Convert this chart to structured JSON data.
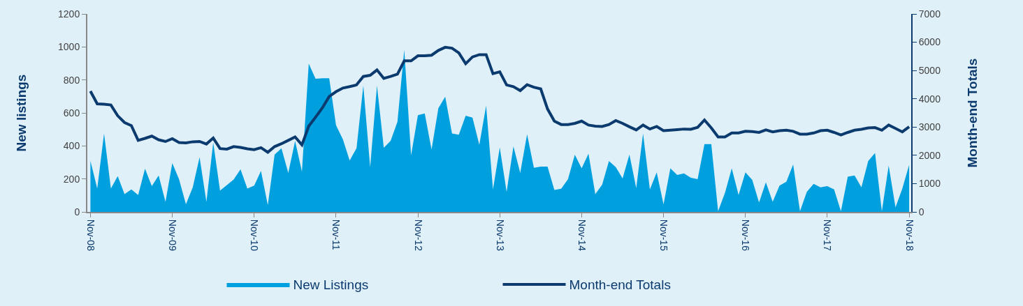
{
  "chart_data": {
    "type": "area",
    "ylabel": "New listings",
    "y2label": "Month-end Totals",
    "categories": [
      "Nov-08",
      null,
      null,
      null,
      null,
      null,
      null,
      null,
      null,
      null,
      null,
      null,
      "Nov-09",
      null,
      null,
      null,
      null,
      null,
      null,
      null,
      null,
      null,
      null,
      null,
      "Nov-10",
      null,
      null,
      null,
      null,
      null,
      null,
      null,
      null,
      null,
      null,
      null,
      "Nov-11",
      null,
      null,
      null,
      null,
      null,
      null,
      null,
      null,
      null,
      null,
      null,
      "Nov-12",
      null,
      null,
      null,
      null,
      null,
      null,
      null,
      null,
      null,
      null,
      null,
      "Nov-13",
      null,
      null,
      null,
      null,
      null,
      null,
      null,
      null,
      null,
      null,
      null,
      "Nov-14",
      null,
      null,
      null,
      null,
      null,
      null,
      null,
      null,
      null,
      null,
      null,
      "Nov-15",
      null,
      null,
      null,
      null,
      null,
      null,
      null,
      null,
      null,
      null,
      null,
      "Nov-16",
      null,
      null,
      null,
      null,
      null,
      null,
      null,
      null,
      null,
      null,
      null,
      "Nov-17",
      null,
      null,
      null,
      null,
      null,
      null,
      null,
      null,
      null,
      null,
      null,
      "Nov-18"
    ],
    "series": [
      {
        "name": "New Listings",
        "color": "#00a0df",
        "values": [
          310,
          142,
          475,
          142,
          217,
          108,
          136,
          102,
          262,
          156,
          221,
          61,
          296,
          197,
          47,
          149,
          332,
          61,
          420,
          129,
          163,
          197,
          258,
          142,
          160,
          248,
          41,
          348,
          386,
          237,
          430,
          244,
          899,
          807,
          810,
          810,
          525,
          441,
          312,
          386,
          766,
          271,
          766,
          389,
          431,
          546,
          983,
          343,
          586,
          597,
          378,
          628,
          698,
          475,
          468,
          583,
          572,
          407,
          644,
          136,
          391,
          122,
          397,
          237,
          471,
          267,
          275,
          275,
          133,
          140,
          199,
          346,
          264,
          353,
          108,
          165,
          308,
          271,
          203,
          348,
          145,
          475,
          136,
          240,
          45,
          264,
          224,
          233,
          207,
          199,
          411,
          411,
          4,
          115,
          264,
          102,
          240,
          194,
          57,
          180,
          61,
          159,
          183,
          287,
          4,
          122,
          170,
          149,
          156,
          136,
          4,
          213,
          221,
          149,
          308,
          357,
          4,
          281,
          27,
          142,
          285
        ]
      },
      {
        "name": "Month-end Totals",
        "type": "line",
        "axis": "y2",
        "color": "#0b3a6e",
        "values": [
          4270,
          3820,
          3810,
          3780,
          3400,
          3160,
          3050,
          2530,
          2600,
          2680,
          2550,
          2490,
          2590,
          2450,
          2440,
          2480,
          2490,
          2400,
          2610,
          2240,
          2220,
          2310,
          2280,
          2230,
          2200,
          2270,
          2110,
          2310,
          2410,
          2530,
          2650,
          2370,
          3030,
          3350,
          3680,
          4080,
          4250,
          4380,
          4430,
          4490,
          4790,
          4830,
          5020,
          4720,
          4790,
          4870,
          5340,
          5340,
          5520,
          5520,
          5540,
          5710,
          5820,
          5790,
          5620,
          5240,
          5480,
          5560,
          5560,
          4890,
          4950,
          4490,
          4430,
          4290,
          4500,
          4410,
          4350,
          3640,
          3210,
          3090,
          3090,
          3130,
          3210,
          3070,
          3030,
          3020,
          3090,
          3230,
          3130,
          3010,
          2900,
          3070,
          2930,
          3020,
          2870,
          2890,
          2910,
          2930,
          2920,
          2990,
          3250,
          2970,
          2650,
          2650,
          2790,
          2790,
          2850,
          2840,
          2810,
          2900,
          2830,
          2870,
          2890,
          2850,
          2750,
          2750,
          2790,
          2870,
          2890,
          2810,
          2720,
          2810,
          2890,
          2920,
          2970,
          2980,
          2890,
          3070,
          2950,
          2830,
          3010
        ]
      }
    ],
    "ylim": [
      0,
      1200
    ],
    "yticks": [
      0,
      200,
      400,
      600,
      800,
      1000,
      1200
    ],
    "y2lim": [
      0,
      7000
    ],
    "y2ticks": [
      0,
      1000,
      2000,
      3000,
      4000,
      5000,
      6000,
      7000
    ],
    "grid": false,
    "legend": "bottom",
    "marker": "none",
    "line_style": "solid"
  }
}
